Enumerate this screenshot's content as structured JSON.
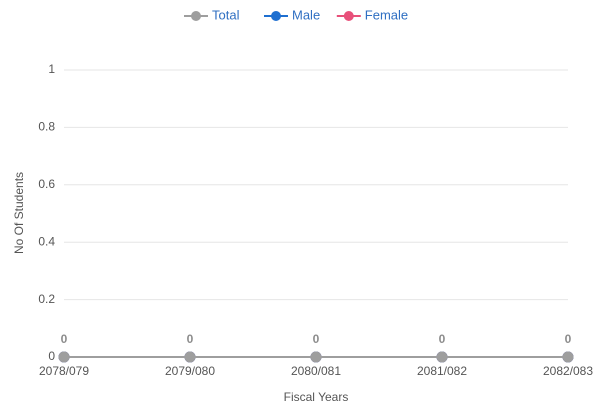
{
  "chart_data": {
    "type": "line",
    "categories": [
      "2078/079",
      "2079/080",
      "2080/081",
      "2081/082",
      "2082/083"
    ],
    "series": [
      {
        "name": "Total",
        "color": "#9e9e9e",
        "values": [
          0,
          0,
          0,
          0,
          0
        ]
      },
      {
        "name": "Male",
        "color": "#1e6fd0",
        "values": [
          0,
          0,
          0,
          0,
          0
        ]
      },
      {
        "name": "Female",
        "color": "#e8507a",
        "values": [
          0,
          0,
          0,
          0,
          0
        ]
      }
    ],
    "y_label": "No Of Students",
    "x_label": "Fiscal Years",
    "ylim": [
      0,
      1
    ],
    "yticks": [
      0,
      0.2,
      0.4,
      0.6,
      0.8,
      1
    ],
    "grid": true,
    "legend": "top"
  }
}
